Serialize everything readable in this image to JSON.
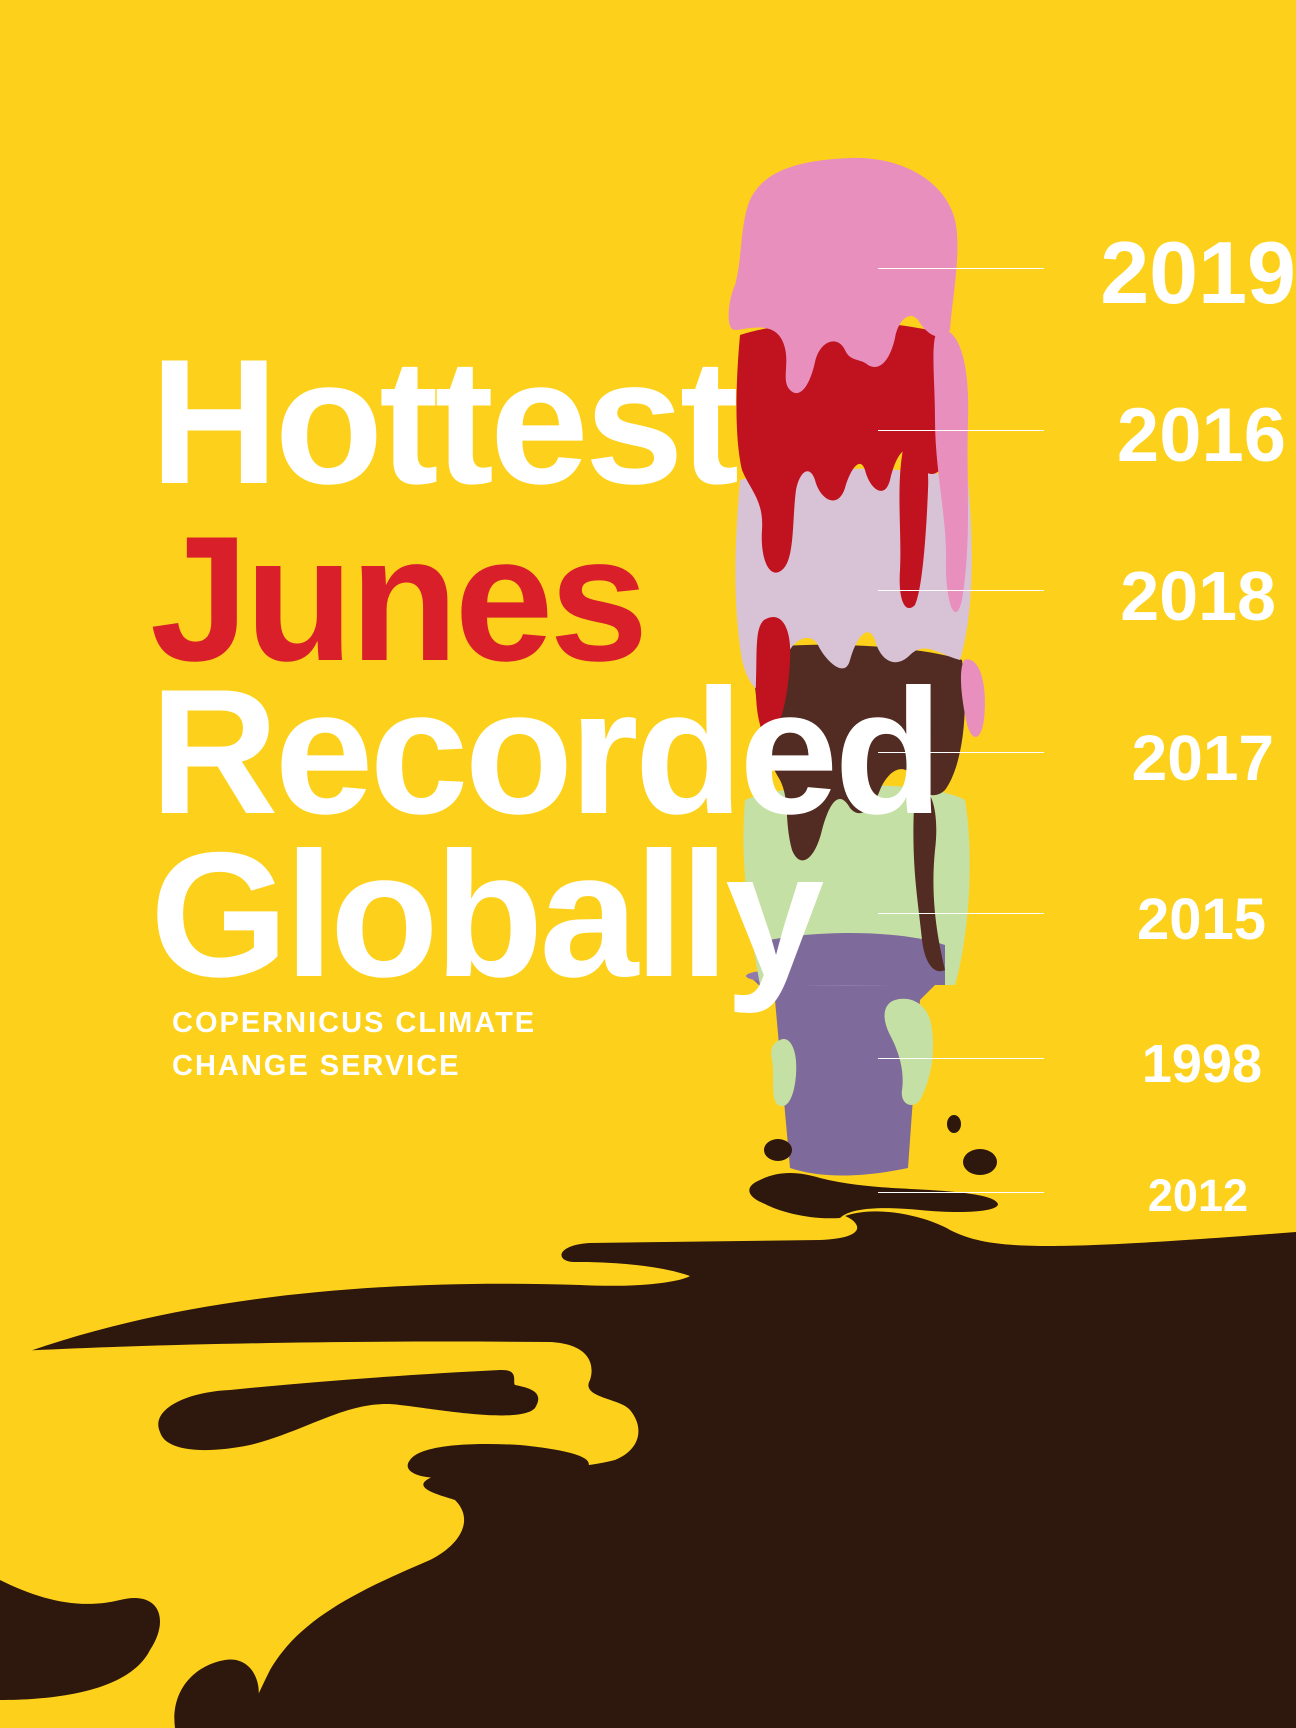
{
  "title": {
    "line1": "Hottest",
    "line2": "Junes",
    "line3": "Recorded",
    "line4": "Globally"
  },
  "source": {
    "line1": "COPERNICUS CLIMATE",
    "line2": "CHANGE SERVICE"
  },
  "years": [
    "2019",
    "2016",
    "2018",
    "2017",
    "2015",
    "1998",
    "2012"
  ],
  "colors": {
    "background": "#fdd11b",
    "headline_white": "#ffffff",
    "headline_red": "#d9202a",
    "puddle": "#2e170c",
    "cone": "#7f6a9c",
    "scoop_2019_pink": "#e88fbe",
    "scoop_2016_red": "#c1131f",
    "scoop_2018_lilac": "#d8c3d6",
    "scoop_2017_chocolate": "#522c22",
    "scoop_2015_green": "#c5e0a4"
  }
}
